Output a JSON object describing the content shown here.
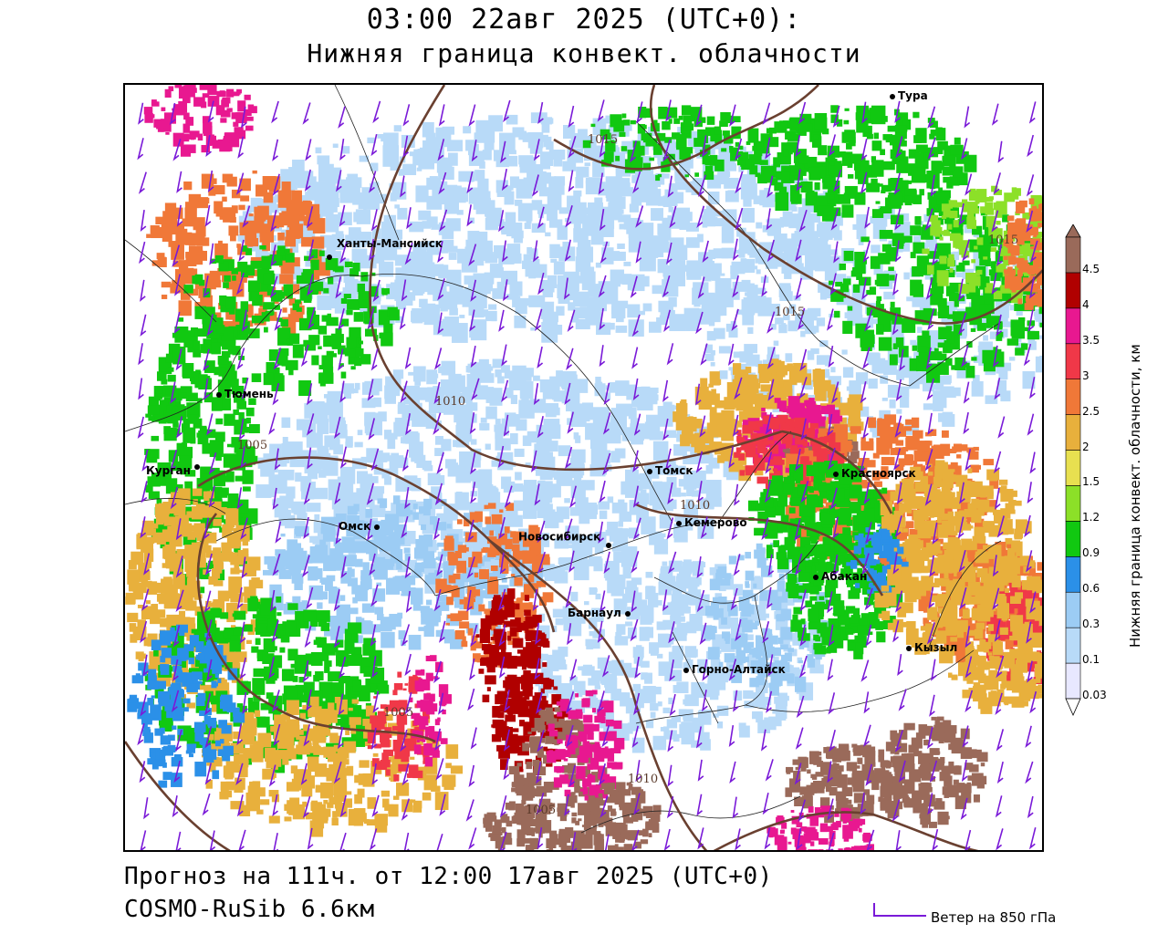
{
  "title": {
    "line1": "03:00 22авг 2025 (UTC+0):",
    "line2": "Нижняя граница конвект. облачности"
  },
  "footer": {
    "forecast": "Прогноз на 111ч. от 12:00 17авг 2025 (UTC+0)",
    "model": "COSMO-RuSib 6.6км"
  },
  "wind_legend": "Ветер на 850 гПа",
  "colorbar": {
    "title": "Нижняя граница конвект. облачности, км",
    "labels": [
      "0.03",
      "0.1",
      "0.3",
      "0.6",
      "0.9",
      "1.2",
      "1.5",
      "2",
      "2.5",
      "3",
      "3.5",
      "4",
      "4.5"
    ],
    "colors": [
      "#e8e8ff",
      "#b8daf8",
      "#9cccf4",
      "#2b90e8",
      "#11c811",
      "#8ce028",
      "#e8e050",
      "#e8b03c",
      "#f07838",
      "#f03848",
      "#e81890",
      "#b00000",
      "#9a6a5a"
    ]
  },
  "cities": [
    {
      "name": "Тура"
    },
    {
      "name": "Ханты-Мансийск"
    },
    {
      "name": "Тюмень"
    },
    {
      "name": "Курган"
    },
    {
      "name": "Омск"
    },
    {
      "name": "Томск"
    },
    {
      "name": "Красноярск"
    },
    {
      "name": "Кемерово"
    },
    {
      "name": "Новосибирск"
    },
    {
      "name": "Абакан"
    },
    {
      "name": "Барнаул"
    },
    {
      "name": "Кызыл"
    },
    {
      "name": "Горно-Алтайск"
    }
  ],
  "isobars": [
    "1015",
    "1015",
    "1015",
    "1010",
    "1005",
    "1010",
    "1005",
    "1010",
    "1005"
  ]
}
